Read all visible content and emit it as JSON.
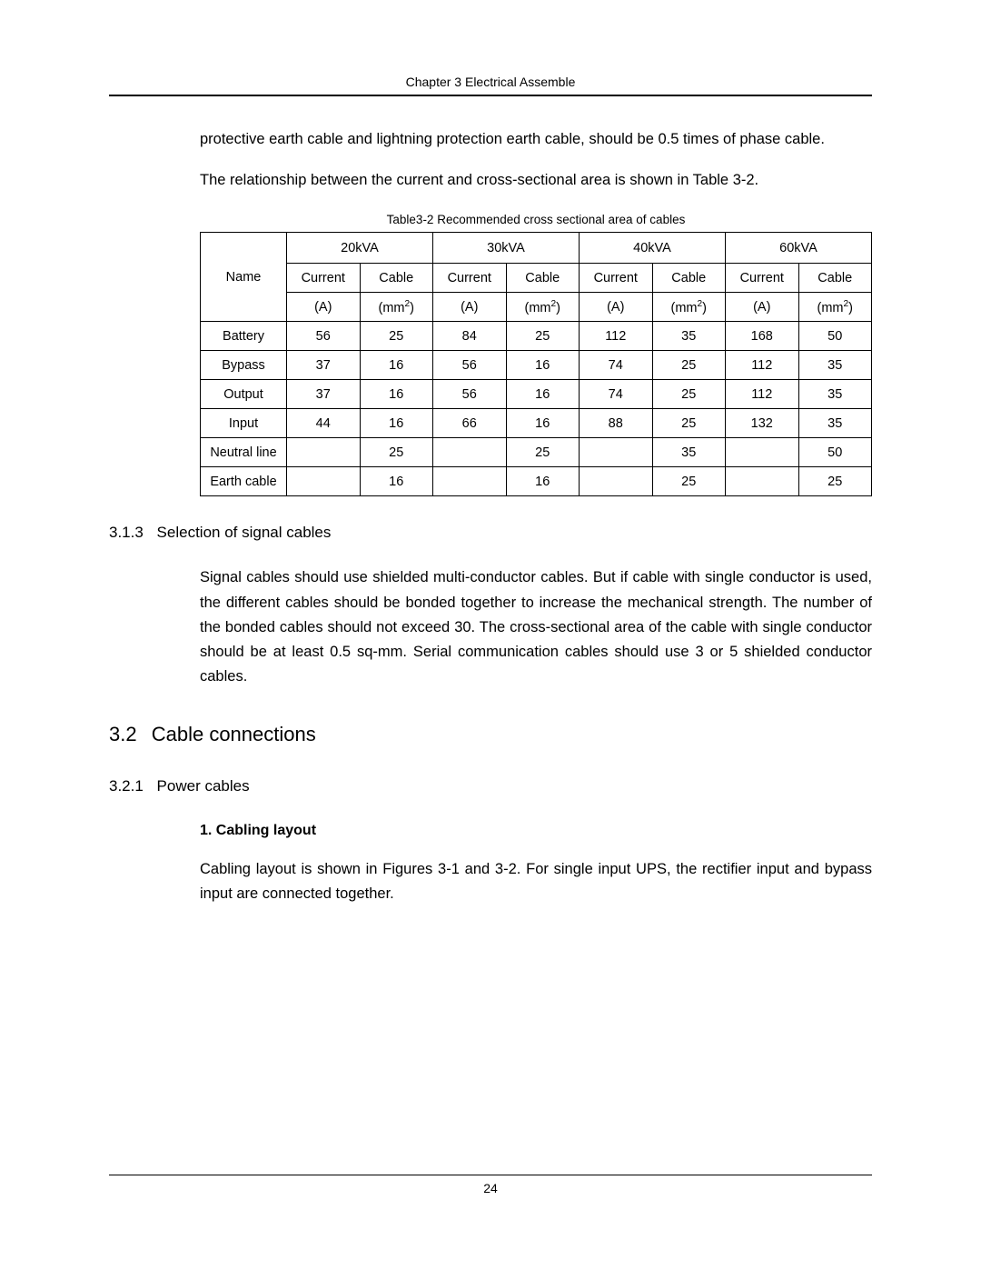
{
  "header": {
    "chapter": "Chapter 3  Electrical Assemble"
  },
  "para1": "protective earth cable and lightning protection earth cable, should be 0.5 times of phase cable.",
  "para2": "The relationship between the current and cross-sectional area is shown in Table 3-2.",
  "table": {
    "caption": "Table3-2 Recommended cross sectional area of cables",
    "name_header": "Name",
    "current_label": "Current",
    "current_unit": "(A)",
    "cable_label": "Cable",
    "cable_unit_prefix": "(mm",
    "cable_unit_sup": "2",
    "cable_unit_suffix": ")",
    "groups": [
      "20kVA",
      "30kVA",
      "40kVA",
      "60kVA"
    ],
    "rows": [
      {
        "name": "Battery",
        "vals": [
          "56",
          "25",
          "84",
          "25",
          "112",
          "35",
          "168",
          "50"
        ]
      },
      {
        "name": "Bypass",
        "vals": [
          "37",
          "16",
          "56",
          "16",
          "74",
          "25",
          "112",
          "35"
        ]
      },
      {
        "name": "Output",
        "vals": [
          "37",
          "16",
          "56",
          "16",
          "74",
          "25",
          "112",
          "35"
        ]
      },
      {
        "name": "Input",
        "vals": [
          "44",
          "16",
          "66",
          "16",
          "88",
          "25",
          "132",
          "35"
        ]
      },
      {
        "name": "Neutral line",
        "vals": [
          "",
          "25",
          "",
          "25",
          "",
          "35",
          "",
          "50"
        ]
      },
      {
        "name": "Earth cable",
        "vals": [
          "",
          "16",
          "",
          "16",
          "",
          "25",
          "",
          "25"
        ]
      }
    ]
  },
  "sec313": {
    "num": "3.1.3",
    "title": "Selection of signal cables",
    "para": "Signal cables should use shielded multi-conductor cables.   But if cable with single conductor is used, the different cables should be bonded together to increase the mechanical strength. The number of the bonded cables should not exceed 30. The cross-sectional area of the cable with single conductor should be at least 0.5 sq-mm.  Serial communication cables should use 3 or 5 shielded conductor cables."
  },
  "sec32": {
    "num": "3.2",
    "title": "Cable connections"
  },
  "sec321": {
    "num": "3.2.1",
    "title": "Power cables",
    "sub1_title": "1. Cabling layout",
    "sub1_para": "Cabling layout is shown in Figures 3-1 and 3-2. For single input UPS, the rectifier input and bypass input are connected together."
  },
  "footer": {
    "page_number": "24"
  }
}
